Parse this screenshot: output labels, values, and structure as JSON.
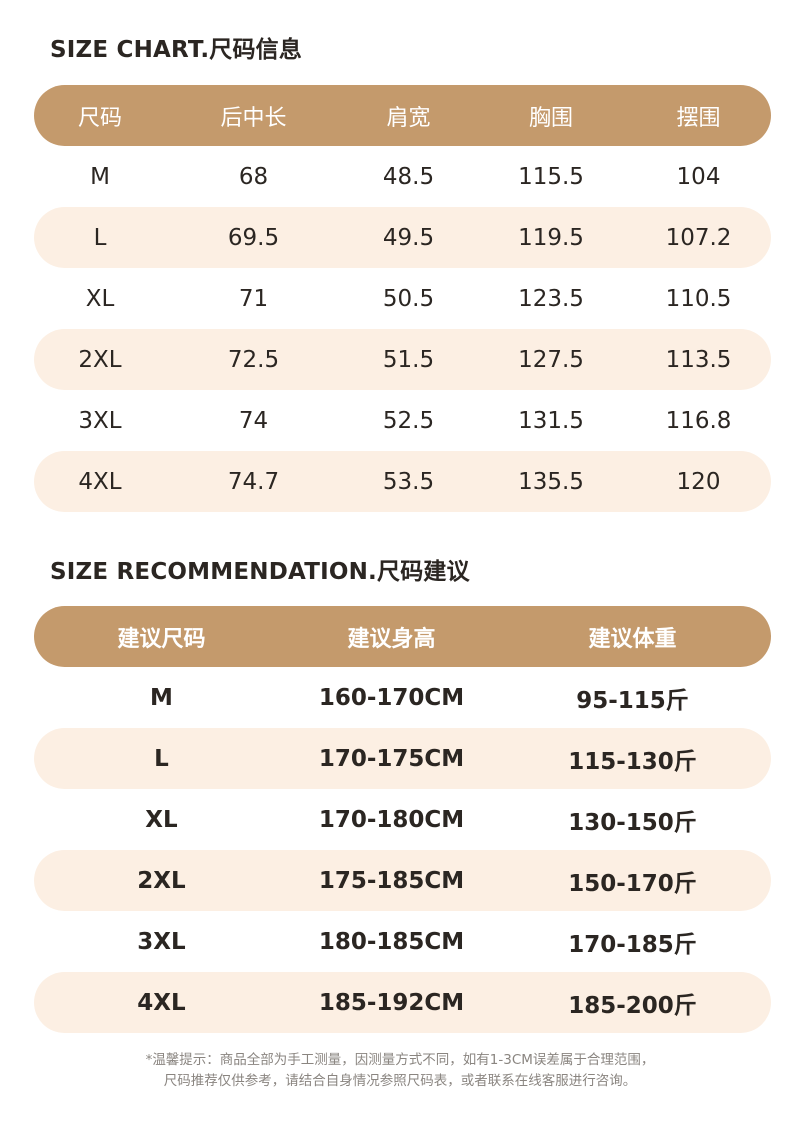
{
  "size_chart": {
    "title": "SIZE CHART.尺码信息",
    "headers": [
      "尺码",
      "后中长",
      "肩宽",
      "胸围",
      "摆围"
    ],
    "rows": [
      [
        "M",
        "68",
        "48.5",
        "115.5",
        "104"
      ],
      [
        "L",
        "69.5",
        "49.5",
        "119.5",
        "107.2"
      ],
      [
        "XL",
        "71",
        "50.5",
        "123.5",
        "110.5"
      ],
      [
        "2XL",
        "72.5",
        "51.5",
        "127.5",
        "113.5"
      ],
      [
        "3XL",
        "74",
        "52.5",
        "131.5",
        "116.8"
      ],
      [
        "4XL",
        "74.7",
        "53.5",
        "135.5",
        "120"
      ]
    ]
  },
  "size_recommendation": {
    "title": "SIZE RECOMMENDATION.尺码建议",
    "headers": [
      "建议尺码",
      "建议身高",
      "建议体重"
    ],
    "rows": [
      [
        "M",
        "160-170CM",
        "95-115斤"
      ],
      [
        "L",
        "170-175CM",
        "115-130斤"
      ],
      [
        "XL",
        "170-180CM",
        "130-150斤"
      ],
      [
        "2XL",
        "175-185CM",
        "150-170斤"
      ],
      [
        "3XL",
        "180-185CM",
        "170-185斤"
      ],
      [
        "4XL",
        "185-192CM",
        "185-200斤"
      ]
    ]
  },
  "note": {
    "line1": "*温馨提示：商品全部为手工测量，因测量方式不同，如有1-3CM误差属于合理范围，",
    "line2": "尺码推荐仅供参考，请结合自身情况参照尺码表，或者联系在线客服进行咨询。"
  },
  "colors": {
    "header_bg": "#c49a6c",
    "alt_row_bg": "#fcefe3",
    "text": "#2b2622"
  }
}
